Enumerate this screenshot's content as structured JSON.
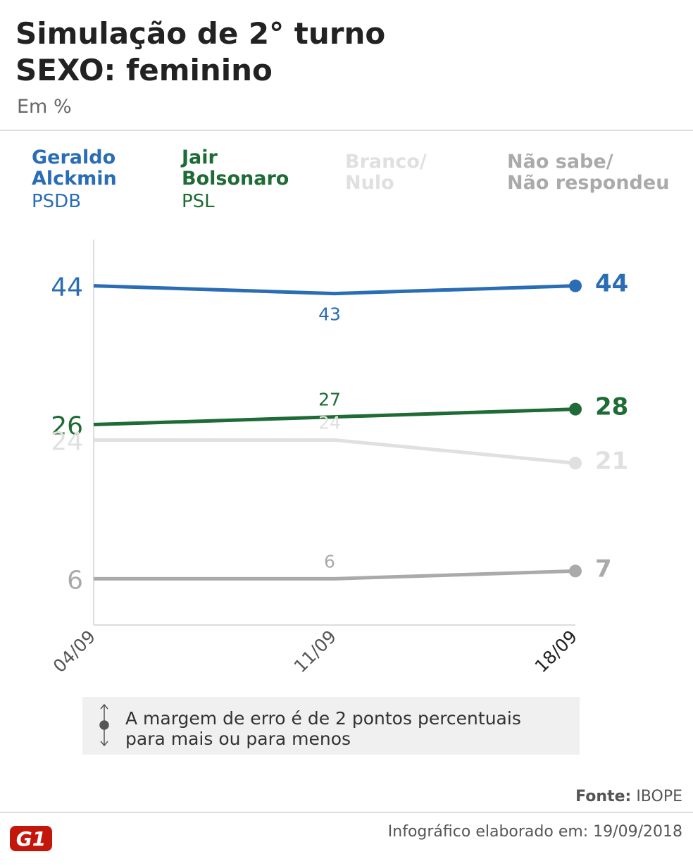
{
  "chart_data": {
    "type": "line",
    "title": [
      "Simulação de 2° turno",
      "SEXO: feminino"
    ],
    "subtitle": "Em %",
    "categories": [
      "04/09",
      "11/09",
      "18/09"
    ],
    "ylim": [
      0,
      50
    ],
    "series": [
      {
        "name": "Geraldo Alckmin",
        "party": "PSDB",
        "color": "#2a6db5",
        "values": [
          44,
          43,
          44
        ]
      },
      {
        "name": "Jair Bolsonaro",
        "party": "PSL",
        "color": "#1e6b35",
        "values": [
          26,
          27,
          28
        ]
      },
      {
        "name": "Branco/ Nulo",
        "color": "#e0e0e0",
        "values": [
          24,
          24,
          21
        ]
      },
      {
        "name": "Não sabe/ Não respondeu",
        "color": "#aaaaaa",
        "values": [
          6,
          6,
          7
        ]
      }
    ],
    "note": [
      "A margem de erro é de 2 pontos percentuais",
      "para mais ou para menos"
    ],
    "source_label": "Fonte:",
    "source": "IBOPE",
    "footer": "Infográfico elaborado em: 19/09/2018",
    "logo": "G1"
  }
}
